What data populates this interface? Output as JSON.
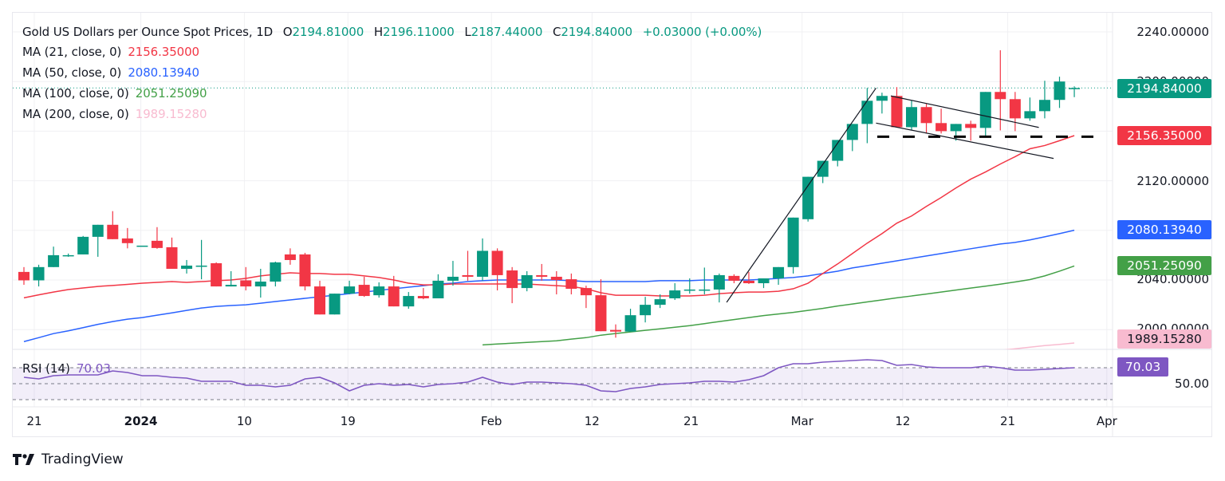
{
  "header": {
    "symbol": "Gold US Dollars per Ounce Spot Prices, 1D",
    "open_label": "O",
    "open": "2194.81000",
    "high_label": "H",
    "high": "2196.11000",
    "low_label": "L",
    "low": "2187.44000",
    "close_label": "C",
    "close": "2194.84000",
    "change": "+0.03000 (+0.00%)"
  },
  "indicators": [
    {
      "label": "MA (21, close, 0)",
      "value": "2156.35000",
      "color": "#f23645"
    },
    {
      "label": "MA (50, close, 0)",
      "value": "2080.13940",
      "color": "#2962ff"
    },
    {
      "label": "MA (100, close, 0)",
      "value": "2051.25090",
      "color": "#43a047"
    },
    {
      "label": "MA (200, close, 0)",
      "value": "1989.15280",
      "color": "#f8bbd0"
    }
  ],
  "rsi": {
    "label": "RSI (14)",
    "value": "70.03",
    "color": "#7e57c2",
    "axis_label": "50.00"
  },
  "price_axis": [
    "2240.00000",
    "2200.00000",
    "2160.00000",
    "2120.00000",
    "2080.00000",
    "2040.00000",
    "2000.00000"
  ],
  "price_tags": [
    {
      "name": "last-price-tag",
      "value": "2194.84000",
      "color": "#089981"
    },
    {
      "name": "ma21-tag",
      "value": "2156.35000",
      "color": "#f23645"
    },
    {
      "name": "ma50-tag",
      "value": "2080.13940",
      "color": "#2962ff"
    },
    {
      "name": "ma100-tag",
      "value": "2051.25090",
      "color": "#43a047"
    },
    {
      "name": "ma200-tag",
      "value": "1989.15280",
      "color": "#f8bbd0"
    },
    {
      "name": "rsi-tag",
      "value": "70.03",
      "color": "#7e57c2"
    }
  ],
  "date_axis": [
    {
      "label": "21",
      "bold": false
    },
    {
      "label": "2024",
      "bold": true
    },
    {
      "label": "10",
      "bold": false
    },
    {
      "label": "19",
      "bold": false
    },
    {
      "label": "Feb",
      "bold": false
    },
    {
      "label": "12",
      "bold": false
    },
    {
      "label": "21",
      "bold": false
    },
    {
      "label": "Mar",
      "bold": false
    },
    {
      "label": "12",
      "bold": false
    },
    {
      "label": "21",
      "bold": false
    },
    {
      "label": "Apr",
      "bold": false
    }
  ],
  "branding": {
    "name": "TradingView"
  },
  "colors": {
    "up": "#089981",
    "down": "#f23645",
    "grid": "#f0f0f3"
  },
  "chart_data": {
    "type": "candlestick",
    "title": "Gold US Dollars per Ounce Spot Prices, 1D",
    "ylim": [
      1980,
      2250
    ],
    "y_ticks": [
      2000,
      2040,
      2080,
      2120,
      2160,
      2200,
      2240
    ],
    "x_tick_labels": [
      "21",
      "2024",
      "10",
      "19",
      "Feb",
      "12",
      "21",
      "Mar",
      "12",
      "21",
      "Apr"
    ],
    "x_tick_index": [
      0.7,
      7.9,
      14.9,
      21.9,
      31.6,
      38.4,
      45.1,
      52.6,
      59.4,
      66.5,
      73.2
    ],
    "candles": [
      [
        2046.5,
        2050.4,
        2036.1,
        2039.7
      ],
      [
        2039.7,
        2052.3,
        2034.8,
        2050.4
      ],
      [
        2050.4,
        2066.9,
        2050.4,
        2060.0
      ],
      [
        2060.0,
        2061.3,
        2058.7,
        2060.0
      ],
      [
        2060.6,
        2075.5,
        2061.3,
        2074.8
      ],
      [
        2074.8,
        2081.3,
        2058.7,
        2084.5
      ],
      [
        2084.5,
        2095.5,
        2072.9,
        2072.9
      ],
      [
        2073.5,
        2081.9,
        2065.5,
        2069.7
      ],
      [
        2067.7,
        2067.7,
        2067.7,
        2067.7
      ],
      [
        2071.6,
        2082.6,
        2065.2,
        2065.8
      ],
      [
        2066.4,
        2074.2,
        2051.0,
        2049.0
      ],
      [
        2049.0,
        2056.1,
        2045.2,
        2051.6
      ],
      [
        2051.6,
        2072.3,
        2040.6,
        2051.6
      ],
      [
        2053.5,
        2054.2,
        2034.8,
        2034.8
      ],
      [
        2034.8,
        2047.1,
        2034.8,
        2036.1
      ],
      [
        2039.7,
        2050.4,
        2031.6,
        2034.8
      ],
      [
        2034.8,
        2049.0,
        2025.8,
        2038.7
      ],
      [
        2038.7,
        2054.8,
        2034.8,
        2054.2
      ],
      [
        2060.6,
        2065.5,
        2052.3,
        2056.1
      ],
      [
        2060.6,
        2061.9,
        2031.6,
        2034.8
      ],
      [
        2034.8,
        2039.4,
        2012.2,
        2012.2
      ],
      [
        2012.2,
        2012.2,
        2012.2,
        2029.0
      ],
      [
        2029.0,
        2039.4,
        2028.4,
        2034.8
      ],
      [
        2036.1,
        2042.6,
        2026.4,
        2027.1
      ],
      [
        2027.7,
        2038.1,
        2025.8,
        2034.8
      ],
      [
        2034.8,
        2043.3,
        2018.7,
        2018.7
      ],
      [
        2018.7,
        2030.3,
        2016.8,
        2027.1
      ],
      [
        2027.1,
        2033.5,
        2024.5,
        2025.2
      ],
      [
        2025.2,
        2044.6,
        2025.2,
        2039.4
      ],
      [
        2039.4,
        2055.4,
        2035.4,
        2042.6
      ],
      [
        2043.9,
        2063.5,
        2039.4,
        2042.6
      ],
      [
        2042.6,
        2073.5,
        2039.4,
        2063.5
      ],
      [
        2063.5,
        2065.5,
        2031.6,
        2043.9
      ],
      [
        2047.7,
        2050.4,
        2021.3,
        2033.5
      ],
      [
        2033.5,
        2047.1,
        2030.9,
        2043.9
      ],
      [
        2043.9,
        2052.9,
        2039.4,
        2042.6
      ],
      [
        2042.6,
        2047.1,
        2028.4,
        2040.0
      ],
      [
        2040.6,
        2045.2,
        2028.4,
        2032.9
      ],
      [
        2033.5,
        2035.4,
        2017.4,
        2027.7
      ],
      [
        2027.7,
        2040.6,
        1999.0,
        1998.7
      ],
      [
        1999.7,
        2004.2,
        1993.5,
        1998.4
      ],
      [
        1998.4,
        2016.8,
        1998.4,
        2011.6
      ],
      [
        2011.6,
        2026.4,
        2005.8,
        2020.0
      ],
      [
        2020.0,
        2028.4,
        2017.4,
        2024.5
      ],
      [
        2025.2,
        2037.4,
        2023.9,
        2031.6
      ],
      [
        2032.3,
        2041.3,
        2029.0,
        2032.3
      ],
      [
        2032.3,
        2050.0,
        2028.4,
        2032.3
      ],
      [
        2032.3,
        2045.2,
        2021.9,
        2043.9
      ],
      [
        2043.3,
        2044.6,
        2037.4,
        2039.4
      ],
      [
        2039.4,
        2046.5,
        2036.8,
        2037.4
      ],
      [
        2037.4,
        2041.3,
        2033.5,
        2041.3
      ],
      [
        2041.3,
        2048.4,
        2036.1,
        2050.4
      ],
      [
        2050.4,
        2070.3,
        2045.2,
        2090.3
      ],
      [
        2089.0,
        2121.9,
        2087.1,
        2123.2
      ],
      [
        2123.2,
        2136.1,
        2118.1,
        2136.1
      ],
      [
        2136.1,
        2145.8,
        2131.6,
        2152.9
      ],
      [
        2152.9,
        2159.4,
        2143.9,
        2165.8
      ],
      [
        2165.8,
        2194.8,
        2150.3,
        2184.5
      ],
      [
        2184.5,
        2191.0,
        2174.2,
        2188.4
      ],
      [
        2188.4,
        2195.5,
        2167.7,
        2163.2
      ],
      [
        2163.2,
        2184.5,
        2160.6,
        2179.4
      ],
      [
        2179.4,
        2182.0,
        2158.1,
        2166.5
      ],
      [
        2166.5,
        2178.1,
        2158.1,
        2160.0
      ],
      [
        2160.0,
        2163.2,
        2152.3,
        2165.8
      ],
      [
        2165.8,
        2168.4,
        2152.3,
        2162.6
      ],
      [
        2162.6,
        2190.3,
        2154.8,
        2191.6
      ],
      [
        2191.6,
        2225.2,
        2160.6,
        2185.8
      ],
      [
        2185.8,
        2191.6,
        2160.0,
        2170.3
      ],
      [
        2170.3,
        2187.1,
        2168.4,
        2176.1
      ],
      [
        2176.1,
        2200.6,
        2170.3,
        2185.2
      ],
      [
        2185.2,
        2203.9,
        2178.7,
        2200.0
      ],
      [
        2194.8,
        2196.1,
        2187.4,
        2194.8
      ]
    ],
    "ma21": [
      2025.6,
      2028.0,
      2030.3,
      2032.3,
      2033.6,
      2034.8,
      2035.6,
      2036.5,
      2037.4,
      2038.1,
      2038.7,
      2038.1,
      2038.7,
      2039.4,
      2040.0,
      2041.3,
      2043.3,
      2044.6,
      2045.8,
      2045.2,
      2045.2,
      2044.6,
      2044.6,
      2043.3,
      2042.0,
      2040.0,
      2037.4,
      2036.1,
      2036.1,
      2036.8,
      2036.8,
      2036.8,
      2036.8,
      2036.8,
      2036.8,
      2036.1,
      2035.4,
      2034.8,
      2032.9,
      2029.7,
      2027.7,
      2027.7,
      2027.7,
      2027.1,
      2027.1,
      2027.1,
      2027.7,
      2029.0,
      2029.7,
      2030.3,
      2030.3,
      2030.9,
      2032.9,
      2037.4,
      2045.2,
      2052.9,
      2061.3,
      2069.7,
      2077.4,
      2085.8,
      2091.6,
      2099.3,
      2106.5,
      2114.2,
      2121.3,
      2127.1,
      2133.5,
      2139.4,
      2145.8,
      2148.4,
      2152.3,
      2156.4
    ],
    "ma50": [
      1990.3,
      1993.5,
      1996.8,
      1999.0,
      2001.6,
      2004.2,
      2006.5,
      2008.4,
      2009.7,
      2011.6,
      2013.5,
      2015.5,
      2017.4,
      2018.7,
      2019.4,
      2020.0,
      2021.3,
      2022.6,
      2023.9,
      2025.2,
      2026.5,
      2027.7,
      2029.0,
      2030.3,
      2031.6,
      2032.9,
      2034.2,
      2035.4,
      2036.8,
      2037.4,
      2038.7,
      2039.4,
      2040.0,
      2040.0,
      2040.0,
      2040.0,
      2040.0,
      2039.4,
      2038.7,
      2038.7,
      2038.7,
      2038.7,
      2038.7,
      2039.4,
      2039.4,
      2039.4,
      2040.0,
      2040.0,
      2040.0,
      2040.0,
      2040.6,
      2041.3,
      2042.0,
      2043.3,
      2045.2,
      2047.1,
      2049.7,
      2051.6,
      2053.5,
      2055.4,
      2057.4,
      2059.4,
      2061.3,
      2063.2,
      2065.2,
      2067.1,
      2069.0,
      2070.3,
      2072.3,
      2074.8,
      2077.4,
      2080.1
    ],
    "ma100": [
      null,
      null,
      null,
      null,
      null,
      null,
      null,
      null,
      null,
      null,
      null,
      null,
      null,
      null,
      null,
      null,
      null,
      null,
      null,
      null,
      null,
      null,
      null,
      null,
      null,
      null,
      null,
      null,
      null,
      null,
      null,
      1987.7,
      1988.4,
      1989.0,
      1989.7,
      1990.3,
      1991.0,
      1992.3,
      1993.5,
      1995.5,
      1996.8,
      1998.1,
      1999.4,
      2000.6,
      2001.9,
      2003.2,
      2004.8,
      2006.5,
      2008.1,
      2009.7,
      2011.3,
      2012.6,
      2013.9,
      2015.5,
      2017.1,
      2019.0,
      2020.6,
      2022.3,
      2023.9,
      2025.6,
      2027.1,
      2028.7,
      2030.3,
      2031.9,
      2033.5,
      2035.0,
      2036.6,
      2038.4,
      2040.3,
      2043.3,
      2047.1,
      2051.3
    ],
    "ma200": [
      null,
      null,
      null,
      null,
      null,
      null,
      null,
      null,
      null,
      null,
      null,
      null,
      null,
      null,
      null,
      null,
      null,
      null,
      null,
      null,
      null,
      null,
      null,
      null,
      null,
      null,
      null,
      null,
      null,
      null,
      null,
      null,
      null,
      null,
      null,
      null,
      null,
      null,
      null,
      null,
      null,
      null,
      null,
      null,
      null,
      null,
      null,
      null,
      null,
      null,
      null,
      null,
      null,
      null,
      null,
      null,
      null,
      null,
      null,
      null,
      null,
      null,
      null,
      null,
      1981.0,
      1982.0,
      1983.3,
      1984.5,
      1985.8,
      1987.1,
      1988.1,
      1989.2
    ],
    "rsi": [
      58,
      56,
      60,
      61,
      61,
      61,
      66,
      64,
      60,
      60,
      58,
      57,
      53,
      53,
      53,
      48,
      48,
      46,
      48,
      56,
      58,
      51,
      41,
      48,
      50,
      48,
      49,
      46,
      49,
      50,
      52,
      58,
      52,
      49,
      52,
      52,
      51,
      50,
      48,
      41,
      40,
      44,
      46,
      49,
      50,
      51,
      53,
      53,
      52,
      55,
      60,
      70,
      75,
      75,
      77,
      78,
      79,
      80,
      79,
      73,
      74,
      71,
      70,
      70,
      70,
      72,
      70,
      67,
      67,
      68,
      69,
      70
    ],
    "annotations": {
      "pole_line": {
        "from": [
          47.5,
          2022
        ],
        "to": [
          57.6,
          2194.8
        ]
      },
      "flag_upper": {
        "from": [
          58.6,
          2188.4
        ],
        "to": [
          68.6,
          2163
        ]
      },
      "flag_lower": {
        "from": [
          57.6,
          2166.5
        ],
        "to": [
          69.6,
          2138
        ]
      },
      "support_dashed": 2155.5
    }
  }
}
